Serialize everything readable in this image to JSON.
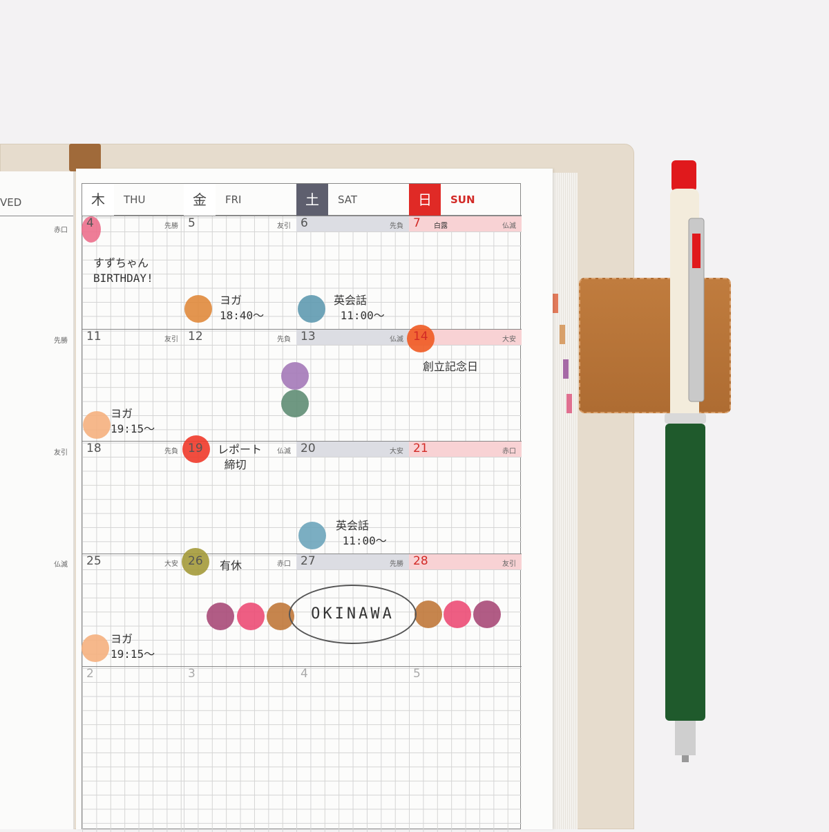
{
  "left_page": {
    "day_partial": "VED",
    "rokuyo": [
      "赤口",
      "先勝",
      "友引",
      "仏滅"
    ]
  },
  "header": [
    {
      "kanji": "木",
      "en": "THU",
      "kanji_bg": "#ffffff",
      "kanji_color": "#444444",
      "en_color": "#555555"
    },
    {
      "kanji": "金",
      "en": "FRI",
      "kanji_bg": "#ffffff",
      "kanji_color": "#444444",
      "en_color": "#555555"
    },
    {
      "kanji": "土",
      "en": "SAT",
      "kanji_bg": "#5e5f6e",
      "kanji_color": "#ffffff",
      "en_color": "#555555"
    },
    {
      "kanji": "日",
      "en": "SUN",
      "kanji_bg": "#e02a26",
      "kanji_color": "#ffffff",
      "en_color": "#d22a26"
    }
  ],
  "weeks": [
    [
      {
        "d": "4",
        "r": "先勝"
      },
      {
        "d": "5",
        "r": "友引"
      },
      {
        "d": "6",
        "r": "先負"
      },
      {
        "d": "7",
        "r": "仏滅",
        "note": "白露"
      }
    ],
    [
      {
        "d": "11",
        "r": "友引"
      },
      {
        "d": "12",
        "r": "先負"
      },
      {
        "d": "13",
        "r": "仏滅"
      },
      {
        "d": "14",
        "r": "大安"
      }
    ],
    [
      {
        "d": "18",
        "r": "先負"
      },
      {
        "d": "19",
        "r": "仏滅"
      },
      {
        "d": "20",
        "r": "大安"
      },
      {
        "d": "21",
        "r": "赤口"
      }
    ],
    [
      {
        "d": "25",
        "r": "大安"
      },
      {
        "d": "26",
        "r": "赤口"
      },
      {
        "d": "27",
        "r": "先勝"
      },
      {
        "d": "28",
        "r": "友引"
      }
    ],
    [
      {
        "d": "2",
        "r": ""
      },
      {
        "d": "3",
        "r": ""
      },
      {
        "d": "4",
        "r": ""
      },
      {
        "d": "5",
        "r": ""
      }
    ]
  ],
  "handwriting": {
    "birthday": "すずちゃん\nBIRTHDAY!",
    "yoga1": "ヨガ\n18:40〜",
    "eikaiwa1": "英会話\n 11:00〜",
    "sogyo": "創立記念日",
    "yoga2": "ヨガ\n19:15〜",
    "report": "レポート\n 締切",
    "eikaiwa2": "英会話\n 11:00〜",
    "yukyu": "有休",
    "okinawa": "OKINAWA",
    "yoga3": "ヨガ\n19:15〜"
  },
  "colors": {
    "sat_strip": "#dcdde3",
    "sun_strip": "#f8d2d4",
    "sun_text": "#d22a26",
    "pen_body": "#1f5a2c",
    "holder": "#b57434"
  }
}
